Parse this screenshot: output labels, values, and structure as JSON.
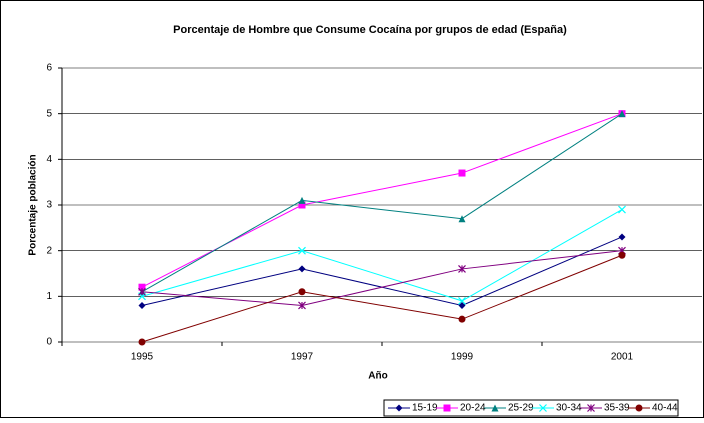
{
  "chart_data": {
    "type": "line",
    "title": "Porcentaje de Hombre que Consume Cocaína por grupos de edad (España)",
    "x_label": "Año",
    "y_label": "Porcentaje población",
    "categories": [
      "1995",
      "1997",
      "1999",
      "2001"
    ],
    "ylim": [
      0,
      6
    ],
    "yticks": [
      0,
      1,
      2,
      3,
      4,
      5,
      6
    ],
    "grid": true,
    "legend": "bottom",
    "series": [
      {
        "name": "15-19",
        "color": "#000080",
        "marker": "diamond",
        "values": [
          0.8,
          1.6,
          0.8,
          2.3
        ]
      },
      {
        "name": "20-24",
        "color": "#ff00ff",
        "marker": "square",
        "values": [
          1.2,
          3.0,
          3.7,
          5.0
        ]
      },
      {
        "name": "25-29",
        "color": "#008080",
        "marker": "triangle",
        "values": [
          1.1,
          3.1,
          2.7,
          5.0
        ]
      },
      {
        "name": "30-34",
        "color": "#00ffff",
        "marker": "x",
        "values": [
          1.0,
          2.0,
          0.9,
          2.9
        ]
      },
      {
        "name": "35-39",
        "color": "#800080",
        "marker": "star",
        "values": [
          1.1,
          0.8,
          1.6,
          2.0
        ]
      },
      {
        "name": "40-44",
        "color": "#800000",
        "marker": "circle",
        "values": [
          0.0,
          1.1,
          0.5,
          1.9
        ]
      }
    ]
  }
}
